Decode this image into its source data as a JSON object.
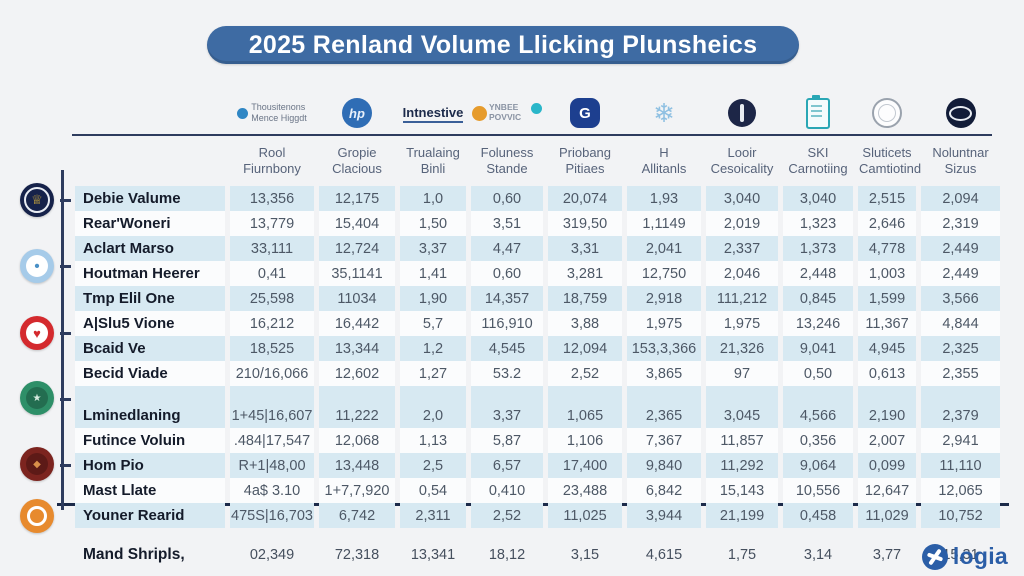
{
  "title": {
    "text": "2025 Renland Volume Llicking Plunsheics",
    "bg_color": "#3e6ba3",
    "text_color": "#ffffff"
  },
  "header": {
    "logos": [
      {
        "name": "blue-dot-wordmark",
        "text1": "Thousitenons",
        "text2": "Mence Higgdt"
      },
      {
        "name": "hp-blue-circle",
        "letters": "hp"
      },
      {
        "name": "intnestive-wordmark",
        "text": "Intnestive"
      },
      {
        "name": "ynbee-mark",
        "text1": "YNBEE",
        "text2": "POVVIC"
      },
      {
        "name": "navy-g-hex",
        "letter": "G"
      },
      {
        "name": "snowflake-mark",
        "glyph": "❄"
      },
      {
        "name": "navy-medal"
      },
      {
        "name": "teal-clipboard"
      },
      {
        "name": "gray-seal"
      },
      {
        "name": "navy-saturn"
      }
    ],
    "columns": [
      {
        "line1": "Rool",
        "line2": "Fiurnbony"
      },
      {
        "line1": "Gropie",
        "line2": "Clacious"
      },
      {
        "line1": "Trualaing",
        "line2": "Binli"
      },
      {
        "line1": "Foluness",
        "line2": "Stande"
      },
      {
        "line1": "Priobang",
        "line2": "Pitiaes"
      },
      {
        "line1": "H",
        "line2": "Allitanls"
      },
      {
        "line1": "Looir",
        "line2": "Cesoicality"
      },
      {
        "line1": "SKI",
        "line2": "Carnotiing"
      },
      {
        "line1": "Sluticets",
        "line2": "Camtiotind"
      },
      {
        "line1": "Noluntnar",
        "line2": "Sizus"
      }
    ]
  },
  "side_badges": [
    {
      "name": "navy-crest-badge",
      "glyph": "♕"
    },
    {
      "name": "lightblue-info-badge",
      "glyph": "•"
    },
    {
      "name": "red-heart-badge",
      "glyph": "♥"
    },
    {
      "name": "green-star-badge",
      "glyph": "★"
    },
    {
      "name": "maroon-diamond-badge",
      "glyph": "◆"
    },
    {
      "name": "orange-ring-badge",
      "glyph": ""
    }
  ],
  "chart_data": {
    "type": "table",
    "title": "2025 Renland Volume Llicking Plunsheics",
    "columns": [
      "Rool Fiurnbony",
      "Gropie Clacious",
      "Trualaing Binli",
      "Foluness Stande",
      "Priobang Pitiaes",
      "H Allitanls",
      "Looir Cesoicality",
      "SKI Carnotiing",
      "Sluticets Camtiotind",
      "Noluntnar Sizus"
    ],
    "groups": [
      {
        "rows": [
          {
            "label": "Debie Valume",
            "values": [
              "13,356",
              "12,175",
              "1,0",
              "0,60",
              "20,074",
              "1,93",
              "3,040",
              "3,040",
              "2,515",
              "2,094"
            ]
          },
          {
            "label": "Rear'Woneri",
            "values": [
              "13,779",
              "15,404",
              "1,50",
              "3,51",
              "319,50",
              "1,1149",
              "2,019",
              "1,323",
              "2,646",
              "2,319"
            ]
          },
          {
            "label": "Aclart Marso",
            "values": [
              "33,111",
              "12,724",
              "3,37",
              "4,47",
              "3,31",
              "2,041",
              "2,337",
              "1,373",
              "4,778",
              "2,449"
            ]
          },
          {
            "label": "Houtman Heerer",
            "values": [
              "0,41",
              "35,1141",
              "1,41",
              "0,60",
              "3,281",
              "12,750",
              "2,046",
              "2,448",
              "1,003",
              "2,449"
            ]
          },
          {
            "label": "Tmp Elil One",
            "values": [
              "25,598",
              "11034",
              "1,90",
              "14,357",
              "18,759",
              "2,918",
              "111,212",
              "0,845",
              "1,599",
              "3,566"
            ]
          },
          {
            "label": "A|Slu5 Vione",
            "values": [
              "16,212",
              "16,442",
              "5,7",
              "116,910",
              "3,88",
              "1,975",
              "1,975",
              "13,246",
              "11,367",
              "4,844"
            ]
          },
          {
            "label": "Bcaid Ve",
            "values": [
              "18,525",
              "13,344",
              "1,2",
              "4,545",
              "12,094",
              "153,3,366",
              "21,326",
              "9,041",
              "4,945",
              "2,325"
            ]
          },
          {
            "label": "Becid Viade",
            "values": [
              "210/16,066",
              "12,602",
              "1,27",
              "53.2",
              "2,52",
              "3,865",
              "97",
              "0,50",
              "0,613",
              "2,355"
            ]
          }
        ]
      },
      {
        "rows": [
          {
            "label": "Lminedlaning",
            "values": [
              "1+45|16,607",
              "11,222",
              "2,0",
              "3,37",
              "1,065",
              "2,365",
              "3,045",
              "4,566",
              "2,190",
              "2,379"
            ]
          },
          {
            "label": "Futince Voluin",
            "values": [
              ".484|17,547",
              "12,068",
              "1,13",
              "5,87",
              "1,106",
              "7,367",
              "11,857",
              "0,356",
              "2,007",
              "2,941"
            ]
          },
          {
            "label": "Hom Pio",
            "values": [
              "R+1|48,00",
              "13,448",
              "2,5",
              "6,57",
              "17,400",
              "9,840",
              "11,292",
              "9,064",
              "0,099",
              "11,110"
            ]
          },
          {
            "label": "Mast Llate",
            "values": [
              "4a$ 3.10",
              "1+7,7,920",
              "0,54",
              "0,410",
              "23,488",
              "6,842",
              "15,143",
              "10,556",
              "12,647",
              "12,065"
            ]
          },
          {
            "label": "Youner Rearid",
            "values": [
              "475S|16,703",
              "6,742",
              "2,311",
              "2,52",
              "11,025",
              "3,944",
              "21,199",
              "0,458",
              "11,029",
              "10,752"
            ]
          }
        ]
      }
    ],
    "footer": {
      "label": "Mand Shripls,",
      "values": [
        "02,349",
        "72,318",
        "13,341",
        "18,12",
        "3,15",
        "4,615",
        "1,75",
        "3,14",
        "3,77",
        "15,31"
      ]
    },
    "stripe_color": "#d7e9f2",
    "grid": false,
    "legend": "none"
  },
  "brand": {
    "text": "logia",
    "color": "#2b5ea7"
  }
}
